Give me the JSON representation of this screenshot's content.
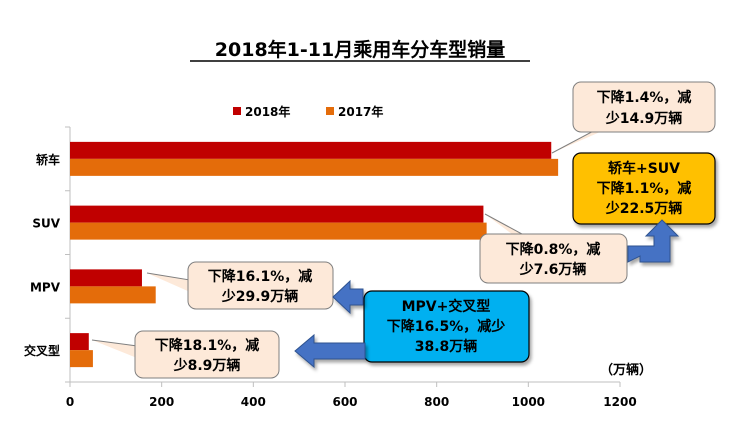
{
  "chart_data": {
    "type": "bar",
    "orientation": "horizontal",
    "title": "2018年1-11月乘用车分车型销量",
    "unit_label": "（万辆）",
    "categories": [
      "轿车",
      "SUV",
      "MPV",
      "交叉型"
    ],
    "series": [
      {
        "name": "2018年",
        "color": "#C00000",
        "values": [
          1050,
          902,
          157,
          41
        ]
      },
      {
        "name": "2017年",
        "color": "#E46C0A",
        "values": [
          1065,
          909,
          187,
          50
        ]
      }
    ],
    "xlim": [
      0,
      1200
    ],
    "xticks": [
      "0",
      "200",
      "400",
      "600",
      "800",
      "1000",
      "1200"
    ],
    "grid": false,
    "legend_position": "top"
  },
  "callouts": {
    "sedan": [
      "下降1.4%，减",
      "少14.9万辆"
    ],
    "suv": [
      "下降0.8%，减",
      "少7.6万辆"
    ],
    "mpv": [
      "下降16.1%，减",
      "少29.9万辆"
    ],
    "crossover": [
      "下降18.1%，减",
      "少8.9万辆"
    ],
    "sedan_suv_total": [
      "轿车+SUV",
      "下降1.1%，减",
      "少22.5万辆"
    ],
    "mpv_crossover_total": [
      "MPV+交叉型",
      "下降16.5%，减少",
      "38.8万辆"
    ]
  },
  "colors": {
    "callout_fill": "#FDE9D9",
    "callout_border": "#7F7F7F",
    "yellow_box": "#FFC000",
    "blue_box": "#00B0F0",
    "arrow_blue": "#4472C4"
  }
}
